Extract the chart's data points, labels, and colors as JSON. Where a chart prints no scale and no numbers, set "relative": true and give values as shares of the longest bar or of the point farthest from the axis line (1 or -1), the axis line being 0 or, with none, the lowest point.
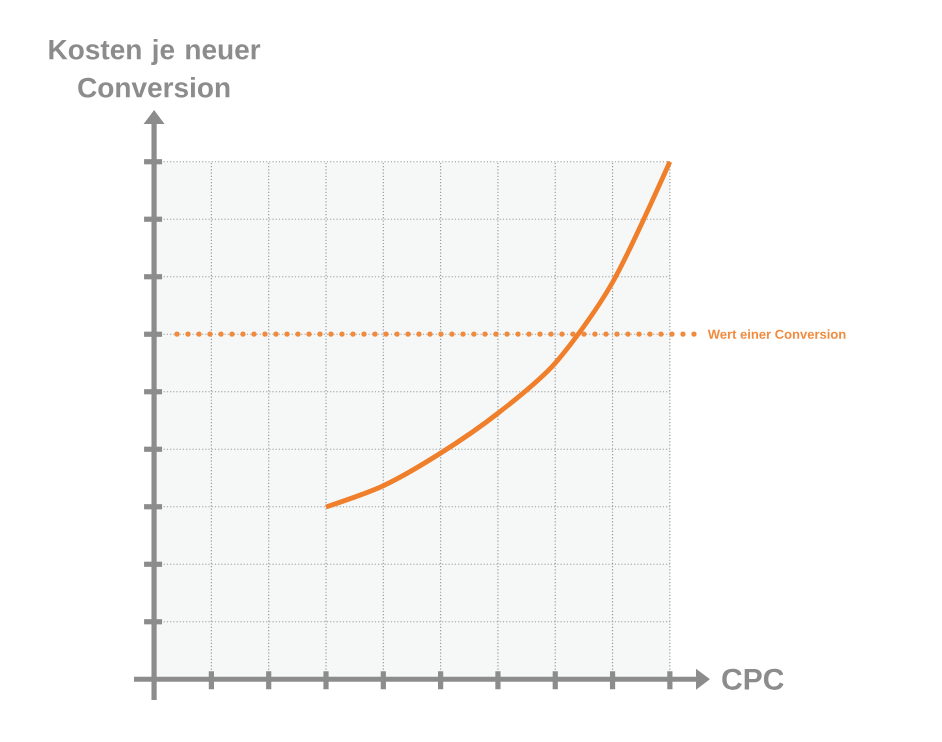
{
  "chart_data": {
    "type": "line",
    "relative": true,
    "xlabel": "CPC",
    "ylabel": "Kosten je neuer Conversion",
    "categories": [
      null,
      null,
      null,
      null,
      null,
      null,
      null,
      null,
      null,
      null
    ],
    "series": [
      {
        "color": "#f07f2b",
        "values": [
          null,
          null,
          null,
          0.333,
          0.374,
          0.437,
          0.514,
          0.611,
          0.767,
          1
        ]
      }
    ],
    "ref_lines": [
      {
        "axis": "y",
        "value": 0.667,
        "label": "Wert einer Conversion",
        "color": "#f08a3c",
        "line_style": "dotted"
      }
    ],
    "grid": true
  }
}
